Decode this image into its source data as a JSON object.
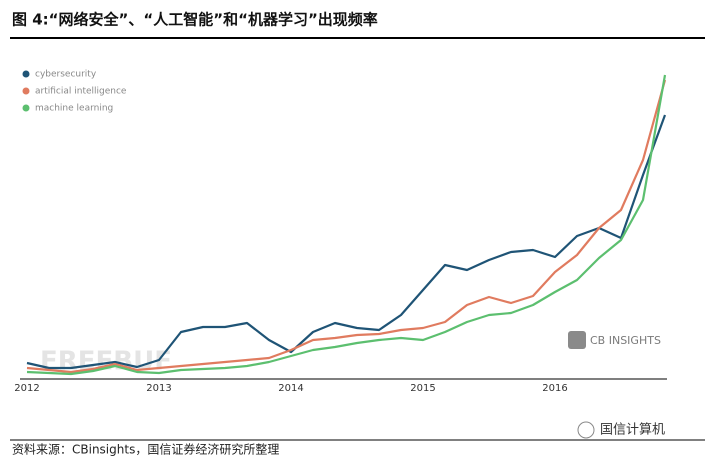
{
  "chart_data": {
    "type": "line",
    "title": "图 4:“网络安全”、“人工智能”和“机器学习”出现频率",
    "categories": [
      "2012",
      null,
      null,
      null,
      null,
      null,
      "2013",
      null,
      null,
      null,
      null,
      null,
      "2014",
      null,
      null,
      null,
      null,
      null,
      "2015",
      null,
      null,
      null,
      null,
      null,
      "2016",
      null,
      null,
      null,
      null,
      null
    ],
    "series": [
      {
        "name": "cybersecurity",
        "color": "#1f5476",
        "values": [
          15,
          10,
          10,
          13,
          16,
          11,
          18,
          46,
          51,
          51,
          55,
          38,
          26,
          46,
          55,
          50,
          48,
          63,
          88,
          113,
          108,
          118,
          126,
          128,
          121,
          142,
          150,
          140,
          203,
          263
        ]
      },
      {
        "name": "artificial intelligence",
        "color": "#e07b5f",
        "values": [
          10,
          8,
          6,
          9,
          14,
          8,
          10,
          12,
          14,
          16,
          18,
          20,
          28,
          38,
          40,
          43,
          44,
          48,
          50,
          56,
          73,
          81,
          75,
          82,
          106,
          123,
          150,
          168,
          218,
          298
        ]
      },
      {
        "name": "machine learning",
        "color": "#5cbf6f",
        "values": [
          6,
          5,
          4,
          7,
          12,
          6,
          5,
          8,
          9,
          10,
          12,
          16,
          22,
          28,
          31,
          35,
          38,
          40,
          38,
          46,
          56,
          63,
          65,
          73,
          86,
          98,
          120,
          138,
          178,
          303
        ]
      }
    ],
    "ylim": [
      0,
      310
    ],
    "legend": "upper left"
  },
  "logo": "CB INSIGHTS",
  "watermark": "FREEBUF",
  "account": "国信计算机",
  "source": "资料来源：CBinsights，国信证券经济研究所整理"
}
